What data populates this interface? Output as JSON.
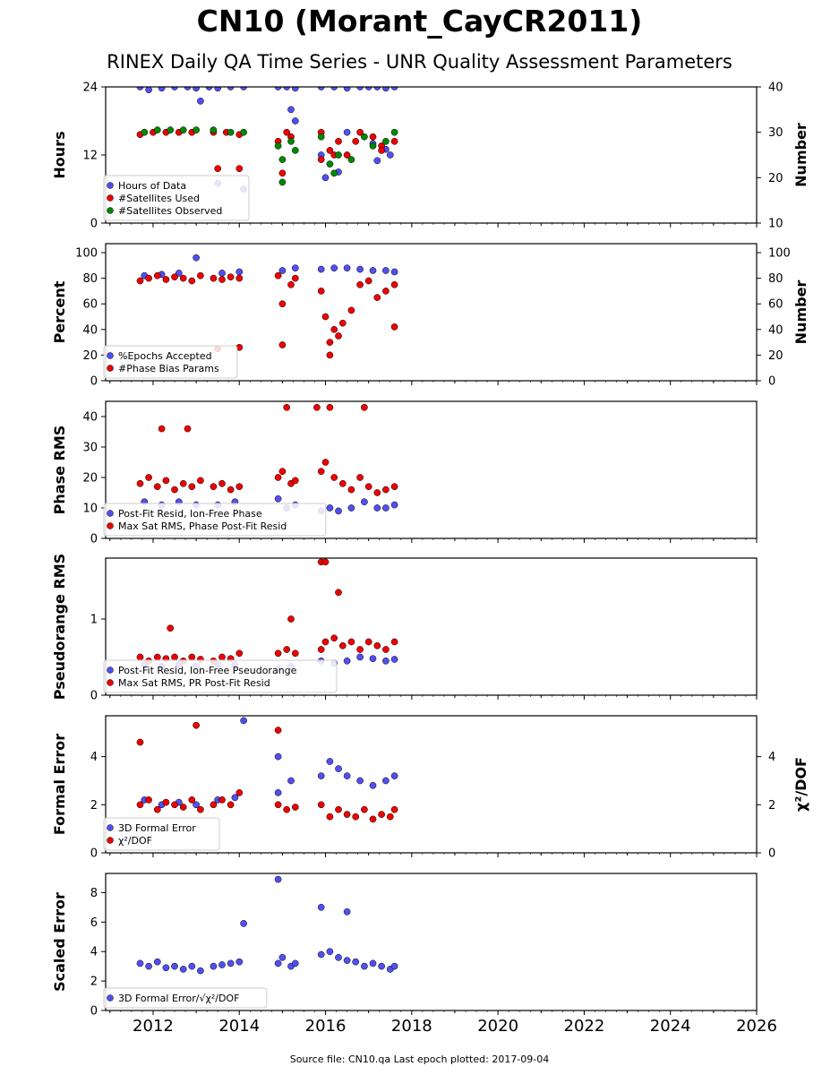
{
  "title": "CN10 (Morant_CayCR2011)",
  "subtitle": "RINEX Daily QA Time Series - UNR Quality Assessment Parameters",
  "footer": "Source file: CN10.qa Last epoch plotted: 2017-09-04",
  "colors": {
    "blue": "#5050f0",
    "red": "#ee0000",
    "green": "#008800"
  },
  "chart_data": [
    {
      "type": "scatter",
      "xlabel": "",
      "ylabel": "Hours",
      "y2label": "Number",
      "xlim": [
        2010.9,
        2026.0
      ],
      "ylim": [
        0,
        24
      ],
      "y2lim": [
        10,
        40
      ],
      "xticks": [
        2012,
        2014,
        2016,
        2018,
        2020,
        2022,
        2024,
        2026
      ],
      "yticks": [
        0,
        12,
        24
      ],
      "y2ticks": [
        10,
        20,
        30,
        40
      ],
      "legend": "bottom-left",
      "series": [
        {
          "name": "Hours of Data",
          "color": "blue",
          "axis": "left",
          "x": [
            2011.7,
            2011.9,
            2012.2,
            2012.5,
            2012.8,
            2013.0,
            2013.3,
            2013.5,
            2013.8,
            2014.1,
            2014.9,
            2015.1,
            2015.3,
            2015.9,
            2016.2,
            2016.5,
            2016.8,
            2017.0,
            2017.2,
            2017.4,
            2017.6,
            2013.1,
            2013.5,
            2014.1,
            2015.2,
            2015.3,
            2015.9,
            2016.3,
            2016.0,
            2016.5,
            2017.1,
            2017.2,
            2017.4,
            2017.5
          ],
          "y": [
            24,
            23.5,
            23.8,
            24,
            24,
            23.8,
            24,
            23.8,
            24,
            24,
            24,
            24,
            23.8,
            24,
            24,
            23.8,
            24,
            24,
            24,
            23.8,
            24,
            21.5,
            7,
            6,
            20,
            18,
            12,
            9,
            8,
            16,
            14,
            11,
            13,
            12
          ]
        },
        {
          "name": "#Satellites Used",
          "color": "red",
          "axis": "right",
          "x": [
            2011.7,
            2012.0,
            2012.3,
            2012.6,
            2012.9,
            2013.4,
            2013.7,
            2014.0,
            2014.9,
            2015.1,
            2015.2,
            2015.9,
            2016.1,
            2016.3,
            2016.5,
            2016.8,
            2017.1,
            2017.3,
            2017.6,
            2013.5,
            2014.0,
            2015.0,
            2015.9,
            2016.2,
            2016.7,
            2017.3
          ],
          "y": [
            29.5,
            30,
            30,
            30,
            30,
            30,
            30,
            29.5,
            28,
            30,
            29,
            30,
            26,
            28,
            25,
            30,
            29,
            27,
            28,
            22,
            22,
            21,
            24,
            25,
            28,
            26
          ]
        },
        {
          "name": "#Satellites Observed",
          "color": "green",
          "axis": "right",
          "x": [
            2011.8,
            2012.1,
            2012.4,
            2012.7,
            2013.0,
            2013.4,
            2013.8,
            2014.1,
            2014.9,
            2015.0,
            2015.2,
            2015.3,
            2015.9,
            2016.1,
            2016.3,
            2016.6,
            2016.9,
            2017.1,
            2017.4,
            2017.6,
            2015.0,
            2016.2
          ],
          "y": [
            30,
            30.5,
            30.5,
            30.5,
            30.5,
            30.5,
            30,
            30,
            27,
            24,
            28,
            26,
            29,
            23,
            25,
            24,
            29,
            27,
            28,
            30,
            19,
            21
          ]
        }
      ]
    },
    {
      "type": "scatter",
      "xlabel": "",
      "ylabel": "Percent",
      "y2label": "Number",
      "xlim": [
        2010.9,
        2026.0
      ],
      "ylim": [
        0,
        107
      ],
      "y2lim": [
        0,
        107
      ],
      "yticks": [
        0,
        20,
        40,
        60,
        80,
        100
      ],
      "y2ticks": [
        0,
        20,
        40,
        60,
        80,
        100
      ],
      "legend": "bottom-left",
      "series": [
        {
          "name": "%Epochs Accepted",
          "color": "blue",
          "axis": "left",
          "x": [
            2011.8,
            2012.2,
            2012.6,
            2013.0,
            2013.6,
            2014.0,
            2015.0,
            2015.3,
            2015.9,
            2016.2,
            2016.5,
            2016.8,
            2017.1,
            2017.4,
            2017.6
          ],
          "y": [
            82,
            83,
            84,
            96,
            84,
            85,
            86,
            88,
            87,
            88,
            88,
            87,
            86,
            86,
            85
          ]
        },
        {
          "name": "#Phase Bias Params",
          "color": "red",
          "axis": "right",
          "x": [
            2011.7,
            2011.9,
            2012.1,
            2012.3,
            2012.5,
            2012.7,
            2012.9,
            2013.1,
            2013.4,
            2013.6,
            2013.8,
            2014.0,
            2014.9,
            2015.0,
            2015.2,
            2015.3,
            2015.9,
            2016.0,
            2016.1,
            2016.2,
            2016.3,
            2016.4,
            2016.6,
            2016.8,
            2017.0,
            2017.2,
            2017.4,
            2017.6,
            2013.5,
            2014.0,
            2015.0,
            2016.1,
            2017.6
          ],
          "y": [
            78,
            80,
            82,
            79,
            81,
            80,
            78,
            82,
            80,
            79,
            81,
            80,
            82,
            60,
            75,
            80,
            70,
            50,
            30,
            40,
            35,
            45,
            55,
            75,
            78,
            65,
            70,
            75,
            25,
            26,
            28,
            20,
            42
          ]
        }
      ]
    },
    {
      "type": "scatter",
      "xlabel": "",
      "ylabel": "Phase RMS",
      "xlim": [
        2010.9,
        2026.0
      ],
      "ylim": [
        0,
        45
      ],
      "yticks": [
        0,
        10,
        20,
        30,
        40
      ],
      "legend": "bottom-left",
      "series": [
        {
          "name": "Post-Fit Resid, Ion-Free Phase",
          "color": "blue",
          "x": [
            2011.8,
            2012.2,
            2012.6,
            2013.0,
            2013.5,
            2013.9,
            2014.9,
            2015.1,
            2015.3,
            2015.9,
            2016.1,
            2016.3,
            2016.6,
            2016.9,
            2017.2,
            2017.4,
            2017.6
          ],
          "y": [
            12,
            11,
            12,
            11,
            11,
            12,
            13,
            10,
            11,
            9,
            10,
            9,
            10,
            12,
            10,
            10,
            11
          ]
        },
        {
          "name": "Max Sat RMS, Phase Post-Fit Resid",
          "color": "red",
          "x": [
            2011.7,
            2011.9,
            2012.1,
            2012.3,
            2012.5,
            2012.7,
            2012.9,
            2013.1,
            2013.4,
            2013.6,
            2013.8,
            2014.0,
            2014.9,
            2015.0,
            2015.2,
            2015.3,
            2015.9,
            2016.0,
            2016.2,
            2016.4,
            2016.6,
            2016.8,
            2017.0,
            2017.2,
            2017.4,
            2017.6,
            2012.2,
            2012.8,
            2015.1,
            2015.8,
            2016.1,
            2016.9
          ],
          "y": [
            18,
            20,
            17,
            19,
            16,
            18,
            17,
            19,
            17,
            18,
            16,
            17,
            20,
            22,
            18,
            19,
            22,
            25,
            20,
            18,
            16,
            20,
            17,
            15,
            16,
            17,
            36,
            36,
            43,
            43,
            43,
            43
          ]
        }
      ]
    },
    {
      "type": "scatter",
      "xlabel": "",
      "ylabel": "Pseudorange RMS",
      "xlim": [
        2010.9,
        2026.0
      ],
      "ylim": [
        0,
        1.8
      ],
      "yticks": [
        0,
        1
      ],
      "legend": "bottom-left",
      "series": [
        {
          "name": "Post-Fit Resid, Ion-Free Pseudorange",
          "color": "blue",
          "x": [
            2011.8,
            2012.2,
            2012.6,
            2013.0,
            2013.5,
            2013.9,
            2014.9,
            2015.2,
            2015.9,
            2016.2,
            2016.5,
            2016.8,
            2017.1,
            2017.4,
            2017.6
          ],
          "y": [
            0.4,
            0.38,
            0.4,
            0.38,
            0.4,
            0.4,
            0.35,
            0.38,
            0.45,
            0.42,
            0.45,
            0.5,
            0.48,
            0.45,
            0.47
          ]
        },
        {
          "name": "Max Sat RMS, PR Post-Fit Resid",
          "color": "red",
          "x": [
            2011.7,
            2011.9,
            2012.1,
            2012.3,
            2012.5,
            2012.7,
            2012.9,
            2013.1,
            2013.4,
            2013.6,
            2013.8,
            2014.0,
            2014.9,
            2015.1,
            2015.3,
            2015.9,
            2016.0,
            2016.2,
            2016.4,
            2016.6,
            2016.8,
            2017.0,
            2017.2,
            2017.4,
            2017.6,
            2012.4,
            2015.2,
            2015.9,
            2016.0,
            2016.3
          ],
          "y": [
            0.5,
            0.45,
            0.5,
            0.48,
            0.5,
            0.45,
            0.5,
            0.47,
            0.45,
            0.5,
            0.48,
            0.55,
            0.55,
            0.6,
            0.55,
            0.6,
            0.7,
            0.75,
            0.65,
            0.7,
            0.6,
            0.7,
            0.65,
            0.6,
            0.7,
            0.88,
            1.0,
            1.75,
            1.75,
            1.35
          ]
        }
      ]
    },
    {
      "type": "scatter",
      "xlabel": "",
      "ylabel": "Formal Error",
      "y2label": "χ²/DOF",
      "xlim": [
        2010.9,
        2026.0
      ],
      "ylim": [
        0,
        5.7
      ],
      "y2lim": [
        0,
        5.7
      ],
      "yticks": [
        0,
        2,
        4
      ],
      "y2ticks": [
        0,
        2,
        4
      ],
      "legend": "bottom-left",
      "series": [
        {
          "name": "3D Formal Error",
          "color": "blue",
          "axis": "left",
          "x": [
            2011.8,
            2012.2,
            2012.6,
            2013.0,
            2013.5,
            2013.9,
            2014.9,
            2015.2,
            2015.9,
            2016.1,
            2016.3,
            2016.5,
            2016.8,
            2017.1,
            2017.4,
            2017.6,
            2014.1,
            2014.9
          ],
          "y": [
            2.2,
            2.0,
            2.1,
            2.0,
            2.2,
            2.3,
            2.5,
            3.0,
            3.2,
            3.8,
            3.5,
            3.2,
            3.0,
            2.8,
            3.0,
            3.2,
            5.5,
            4.0
          ]
        },
        {
          "name": "χ²/DOF",
          "color": "red",
          "axis": "right",
          "x": [
            2011.7,
            2011.9,
            2012.1,
            2012.3,
            2012.5,
            2012.7,
            2012.9,
            2013.1,
            2013.4,
            2013.6,
            2013.8,
            2014.0,
            2014.9,
            2015.1,
            2015.3,
            2015.9,
            2016.1,
            2016.3,
            2016.5,
            2016.7,
            2016.9,
            2017.1,
            2017.3,
            2017.5,
            2017.6,
            2013.0,
            2014.9,
            2011.7
          ],
          "y": [
            2.0,
            2.2,
            1.8,
            2.1,
            2.0,
            1.9,
            2.2,
            1.8,
            2.0,
            2.2,
            2.0,
            2.5,
            2.0,
            1.8,
            1.9,
            2.0,
            1.5,
            1.8,
            1.6,
            1.5,
            1.8,
            1.4,
            1.6,
            1.5,
            1.8,
            5.3,
            5.1,
            4.6
          ]
        }
      ]
    },
    {
      "type": "scatter",
      "xlabel": "",
      "ylabel": "Scaled Error",
      "xlim": [
        2010.9,
        2026.0
      ],
      "ylim": [
        0,
        9.3
      ],
      "yticks": [
        0,
        2,
        4,
        6,
        8
      ],
      "legend": "bottom-left",
      "series": [
        {
          "name": "3D Formal Error/√χ²/DOF",
          "color": "blue",
          "x": [
            2011.7,
            2011.9,
            2012.1,
            2012.3,
            2012.5,
            2012.7,
            2012.9,
            2013.1,
            2013.4,
            2013.6,
            2013.8,
            2014.0,
            2014.9,
            2015.0,
            2015.2,
            2015.3,
            2015.9,
            2016.1,
            2016.3,
            2016.5,
            2016.7,
            2016.9,
            2017.1,
            2017.3,
            2017.5,
            2017.6,
            2014.9,
            2014.1,
            2015.9,
            2016.5
          ],
          "y": [
            3.2,
            3.0,
            3.3,
            2.9,
            3.0,
            2.8,
            3.0,
            2.7,
            3.0,
            3.1,
            3.2,
            3.3,
            3.2,
            3.6,
            3.0,
            3.2,
            3.8,
            4.0,
            3.6,
            3.4,
            3.3,
            3.0,
            3.2,
            3.0,
            2.8,
            3.0,
            8.9,
            5.9,
            7.0,
            6.7
          ]
        }
      ]
    }
  ]
}
